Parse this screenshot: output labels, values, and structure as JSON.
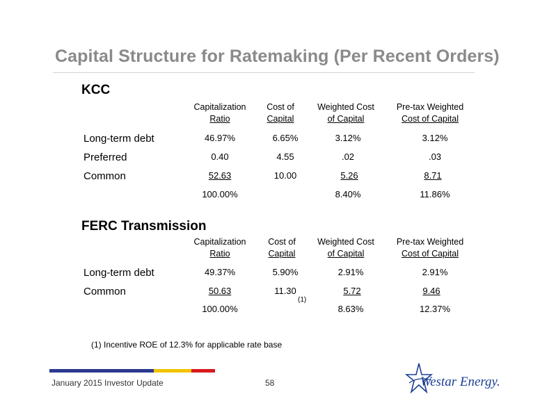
{
  "title": "Capital Structure for Ratemaking (Per Recent Orders)",
  "kcc": {
    "heading": "KCC",
    "col_headers": [
      {
        "line1": "Capitalization",
        "line2": "Ratio"
      },
      {
        "line1": "Cost of",
        "line2": "Capital"
      },
      {
        "line1": "Weighted Cost",
        "line2": "of Capital"
      },
      {
        "line1": "Pre-tax Weighted",
        "line2": "Cost of Capital"
      }
    ],
    "rows": [
      {
        "label": "Long-term debt",
        "cap": "46.97%",
        "cost": "6.65%",
        "weighted": "3.12%",
        "pretax": "3.12%"
      },
      {
        "label": "Preferred",
        "cap": "0.40",
        "cost": "4.55",
        "weighted": ".02",
        "pretax": ".03"
      },
      {
        "label": "Common",
        "cap": "52.63",
        "cost": "10.00",
        "weighted": "5.26",
        "pretax": "8.71"
      }
    ],
    "totals": {
      "cap": "100.00%",
      "weighted": "8.40%",
      "pretax": "11.86%"
    }
  },
  "ferc": {
    "heading": "FERC Transmission",
    "col_headers": [
      {
        "line1": "Capitalization",
        "line2": "Ratio"
      },
      {
        "line1": "Cost of",
        "line2": "Capital"
      },
      {
        "line1": "Weighted Cost",
        "line2": "of Capital"
      },
      {
        "line1": "Pre-tax Weighted",
        "line2": "Cost of Capital"
      }
    ],
    "rows": [
      {
        "label": "Long-term debt",
        "cap": "49.37%",
        "cost": "5.90%",
        "weighted": "2.91%",
        "pretax": "2.91%"
      },
      {
        "label": "Common",
        "cap": "50.63",
        "cost": "11.30",
        "weighted": "5.72",
        "pretax": "9.46"
      }
    ],
    "note_marker": "(1)",
    "totals": {
      "cap": "100.00%",
      "weighted": "8.63%",
      "pretax": "12.37%"
    }
  },
  "footnote": "(1) Incentive ROE of 12.3% for applicable rate base",
  "footer": {
    "left": "January 2015 Investor Update",
    "page": "58",
    "logo_text": "Westar Energy."
  },
  "colors": {
    "title": "#8a8a8a",
    "bar_blue": "#2b3990",
    "bar_yellow": "#f2c400",
    "bar_red": "#d71920",
    "logo_blue": "#1c3f94"
  }
}
